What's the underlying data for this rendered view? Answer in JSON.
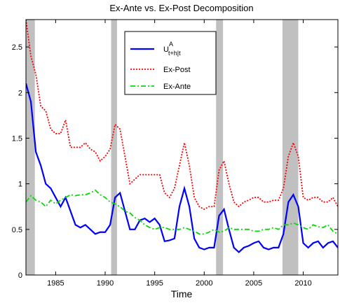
{
  "chart_data": {
    "type": "line",
    "title": "Ex-Ante vs. Ex-Post Decomposition",
    "x_label": "Time",
    "x": [
      1982,
      1982.5,
      1983,
      1983.5,
      1984,
      1984.5,
      1985,
      1985.5,
      1986,
      1986.5,
      1987,
      1987.5,
      1988,
      1988.5,
      1989,
      1989.5,
      1990,
      1990.5,
      1991,
      1991.5,
      1992,
      1992.5,
      1993,
      1993.5,
      1994,
      1994.5,
      1995,
      1995.5,
      1996,
      1996.5,
      1997,
      1997.5,
      1998,
      1998.5,
      1999,
      1999.5,
      2000,
      2000.5,
      2001,
      2001.5,
      2002,
      2002.5,
      2003,
      2003.5,
      2004,
      2004.5,
      2005,
      2005.5,
      2006,
      2006.5,
      2007,
      2007.5,
      2008,
      2008.5,
      2009,
      2009.5,
      2010,
      2010.5,
      2011,
      2011.5,
      2012,
      2012.5,
      2013,
      2013.5
    ],
    "series": [
      {
        "name": "U",
        "name_sup": "A",
        "name_sub": "t+h|t",
        "color": "#0000ff",
        "dash": "solid",
        "values": [
          2.1,
          1.9,
          1.35,
          1.2,
          1.0,
          0.95,
          0.85,
          0.75,
          0.85,
          0.7,
          0.55,
          0.52,
          0.55,
          0.5,
          0.45,
          0.47,
          0.47,
          0.55,
          0.85,
          0.9,
          0.7,
          0.5,
          0.5,
          0.6,
          0.62,
          0.58,
          0.62,
          0.55,
          0.37,
          0.38,
          0.4,
          0.75,
          0.95,
          0.75,
          0.4,
          0.3,
          0.28,
          0.3,
          0.3,
          0.65,
          0.72,
          0.5,
          0.3,
          0.25,
          0.3,
          0.32,
          0.35,
          0.37,
          0.3,
          0.28,
          0.3,
          0.3,
          0.45,
          0.8,
          0.88,
          0.75,
          0.35,
          0.3,
          0.35,
          0.37,
          0.3,
          0.35,
          0.37,
          0.3
        ]
      },
      {
        "name": "Ex-Post",
        "color": "#ff0000",
        "dash": "dotted",
        "values": [
          2.8,
          2.4,
          2.2,
          1.85,
          1.8,
          1.6,
          1.55,
          1.55,
          1.7,
          1.4,
          1.4,
          1.4,
          1.45,
          1.38,
          1.35,
          1.25,
          1.3,
          1.38,
          1.65,
          1.6,
          1.3,
          1.0,
          1.05,
          1.1,
          1.1,
          1.1,
          1.1,
          1.1,
          0.9,
          0.85,
          0.95,
          1.2,
          1.45,
          1.2,
          0.85,
          0.75,
          0.72,
          0.75,
          0.75,
          1.15,
          1.25,
          1.0,
          0.8,
          0.75,
          0.8,
          0.82,
          0.85,
          0.85,
          0.8,
          0.8,
          0.82,
          0.82,
          0.95,
          1.3,
          1.45,
          1.3,
          0.85,
          0.82,
          0.85,
          0.85,
          0.8,
          0.8,
          0.85,
          0.75
        ]
      },
      {
        "name": "Ex-Ante",
        "color": "#00dd00",
        "dash": "dashdot",
        "values": [
          0.8,
          0.87,
          0.82,
          0.8,
          0.75,
          0.82,
          0.78,
          0.82,
          0.85,
          0.88,
          0.87,
          0.88,
          0.88,
          0.9,
          0.93,
          0.88,
          0.85,
          0.8,
          0.78,
          0.75,
          0.7,
          0.68,
          0.63,
          0.6,
          0.55,
          0.52,
          0.5,
          0.52,
          0.52,
          0.5,
          0.5,
          0.5,
          0.52,
          0.5,
          0.48,
          0.45,
          0.45,
          0.47,
          0.5,
          0.47,
          0.48,
          0.52,
          0.5,
          0.5,
          0.5,
          0.5,
          0.48,
          0.48,
          0.5,
          0.5,
          0.52,
          0.5,
          0.55,
          0.55,
          0.57,
          0.55,
          0.52,
          0.5,
          0.55,
          0.53,
          0.52,
          0.55,
          0.48,
          0.45
        ]
      }
    ],
    "shaded": [
      [
        1981.5,
        1982.9
      ],
      [
        1990.6,
        1991.2
      ],
      [
        2001.2,
        2001.9
      ],
      [
        2007.9,
        2009.5
      ]
    ],
    "shade_color": "#c0c0c0",
    "xlim": [
      1982,
      2013.5
    ],
    "xticks": [
      1985,
      1990,
      1995,
      2000,
      2005,
      2010
    ],
    "ylim": [
      0,
      2.8
    ],
    "yticks": [
      0,
      0.5,
      1,
      1.5,
      2,
      2.5
    ],
    "grid": false,
    "legend": "top-center"
  }
}
